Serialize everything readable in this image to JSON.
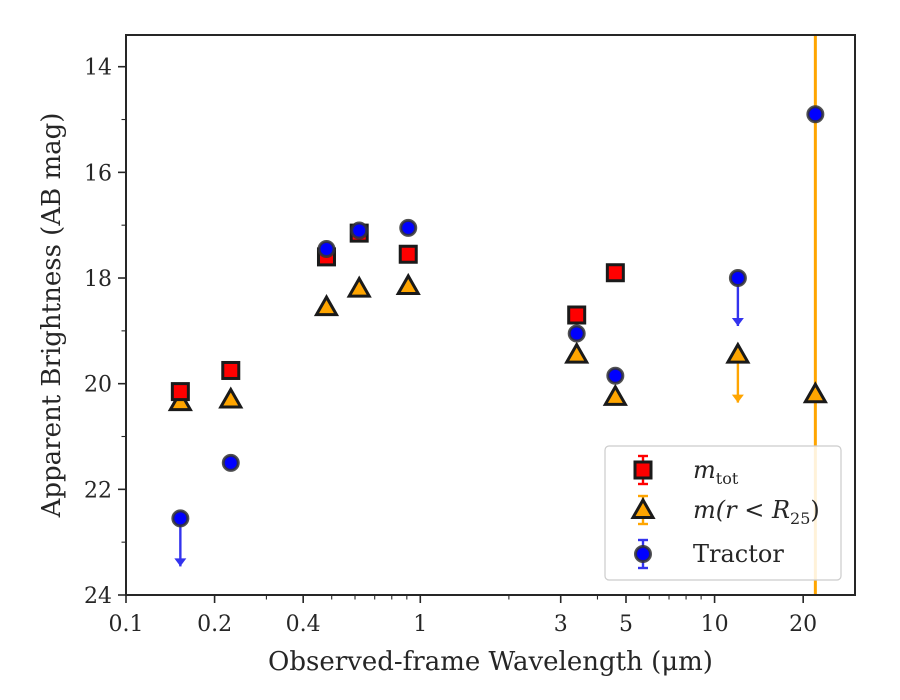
{
  "chart_data": {
    "type": "scatter",
    "xlabel": "Observed-frame Wavelength (μm)",
    "ylabel": "Apparent Brightness (AB mag)",
    "x_scale": "log",
    "xlim": [
      0.1,
      30
    ],
    "ylim": [
      24,
      13.4
    ],
    "y_inverted": true,
    "x_ticks": [
      0.1,
      0.2,
      0.4,
      1,
      3,
      5,
      10,
      20
    ],
    "x_tick_labels": [
      "0.1",
      "0.2",
      "0.4",
      "1",
      "3",
      "5",
      "10",
      "20"
    ],
    "y_ticks": [
      14,
      16,
      18,
      20,
      22,
      24
    ],
    "y_tick_labels": [
      "14",
      "16",
      "18",
      "20",
      "22",
      "24"
    ],
    "grid": false,
    "legend_position": "lower right",
    "vertical_line": {
      "x": 22,
      "color": "#ffa500"
    },
    "series": [
      {
        "name": "m_tot",
        "marker": "square",
        "color": "#ff0000",
        "points": [
          {
            "x": 0.153,
            "y": 20.15
          },
          {
            "x": 0.227,
            "y": 19.75
          },
          {
            "x": 0.48,
            "y": 17.6
          },
          {
            "x": 0.62,
            "y": 17.15
          },
          {
            "x": 0.91,
            "y": 17.55
          },
          {
            "x": 3.4,
            "y": 18.7
          },
          {
            "x": 4.6,
            "y": 17.9
          }
        ]
      },
      {
        "name": "m(r<R25)",
        "marker": "triangle",
        "color": "#ffa500",
        "points": [
          {
            "x": 0.153,
            "y": 20.35,
            "upper_limit": false
          },
          {
            "x": 0.227,
            "y": 20.3,
            "upper_limit": false
          },
          {
            "x": 0.48,
            "y": 18.55,
            "upper_limit": false
          },
          {
            "x": 0.62,
            "y": 18.2,
            "upper_limit": false
          },
          {
            "x": 0.91,
            "y": 18.15,
            "upper_limit": false
          },
          {
            "x": 3.4,
            "y": 19.45,
            "upper_limit": false
          },
          {
            "x": 4.6,
            "y": 20.25,
            "upper_limit": false
          },
          {
            "x": 12,
            "y": 19.45,
            "upper_limit": true
          },
          {
            "x": 22,
            "y": 20.2,
            "upper_limit": false
          }
        ]
      },
      {
        "name": "Tractor",
        "marker": "circle",
        "color": "#0000ff",
        "points": [
          {
            "x": 0.153,
            "y": 22.55,
            "upper_limit": true
          },
          {
            "x": 0.227,
            "y": 21.5,
            "upper_limit": false
          },
          {
            "x": 0.48,
            "y": 17.45,
            "upper_limit": false
          },
          {
            "x": 0.62,
            "y": 17.1,
            "upper_limit": false
          },
          {
            "x": 0.91,
            "y": 17.05,
            "upper_limit": false
          },
          {
            "x": 3.4,
            "y": 19.05,
            "upper_limit": false
          },
          {
            "x": 4.6,
            "y": 19.85,
            "upper_limit": false
          },
          {
            "x": 12,
            "y": 18.0,
            "upper_limit": true
          },
          {
            "x": 22,
            "y": 14.9,
            "upper_limit": false
          }
        ]
      }
    ],
    "legend": [
      {
        "label": "m",
        "sub": "tot",
        "series": "m_tot"
      },
      {
        "label": "m(r < R",
        "sub": "25",
        "suffix": ")",
        "series": "m(r<R25)"
      },
      {
        "label": "Tractor",
        "series": "Tractor"
      }
    ]
  }
}
